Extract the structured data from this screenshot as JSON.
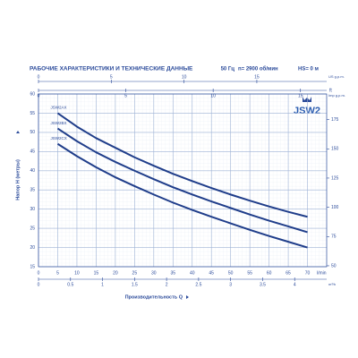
{
  "chart_data": {
    "type": "line",
    "title": "РАБОЧИЕ ХАРАКТЕРИСТИКИ И ТЕХНИЧЕСКИЕ ДАННЫЕ",
    "conditions": [
      "50 Гц",
      "n= 2900 об/мин",
      "HS= 0 м"
    ],
    "logo": "JSW2",
    "y_label": "Напор H (метры)",
    "x_label": "Производительность Q",
    "x_unit": "l/min",
    "y2_unit": "ft",
    "xlim": [
      0,
      75
    ],
    "xticks": [
      0,
      5,
      10,
      15,
      20,
      25,
      30,
      35,
      40,
      45,
      50,
      55,
      60,
      65,
      70
    ],
    "ylim": [
      15,
      60
    ],
    "yticks": [
      15,
      20,
      25,
      30,
      35,
      40,
      45,
      50,
      55,
      60
    ],
    "y2lim": [
      49.2,
      196.9
    ],
    "y2ticks": [
      50,
      75,
      100,
      125,
      150,
      175
    ],
    "grid": true,
    "secondary_x_axes": [
      {
        "unit": "US g.p.m.",
        "position": "top",
        "xlim": [
          0,
          19.8
        ],
        "ticks": [
          0,
          5,
          10,
          15
        ]
      },
      {
        "unit": "Imp g.p.m.",
        "position": "top",
        "xlim": [
          0,
          16.5
        ],
        "ticks": [
          0,
          5,
          10,
          15
        ]
      },
      {
        "unit": "m³/h",
        "position": "bottom",
        "xlim": [
          0,
          4.5
        ],
        "ticks": [
          0,
          0.5,
          1,
          1.5,
          2,
          2.5,
          3,
          3.5,
          4
        ]
      }
    ],
    "x": [
      5,
      10,
      15,
      20,
      25,
      30,
      35,
      40,
      45,
      50,
      55,
      60,
      65,
      70
    ],
    "series": [
      {
        "name": "JSW2AX",
        "color": "#1f3d8a",
        "values": [
          55,
          51.5,
          48.5,
          46,
          43.5,
          41.3,
          39.2,
          37.3,
          35.5,
          33.8,
          32.2,
          30.7,
          29.3,
          28
        ]
      },
      {
        "name": "JSW2BX",
        "color": "#1f3d8a",
        "values": [
          51,
          47.7,
          44.8,
          42.3,
          40,
          37.8,
          35.7,
          33.8,
          32,
          30.3,
          28.6,
          27,
          25.5,
          24
        ]
      },
      {
        "name": "JSW2CX",
        "color": "#1f3d8a",
        "values": [
          47,
          43.8,
          40.9,
          38.3,
          36,
          33.8,
          31.7,
          29.8,
          28,
          26.3,
          24.6,
          23,
          21.5,
          20
        ]
      }
    ]
  }
}
